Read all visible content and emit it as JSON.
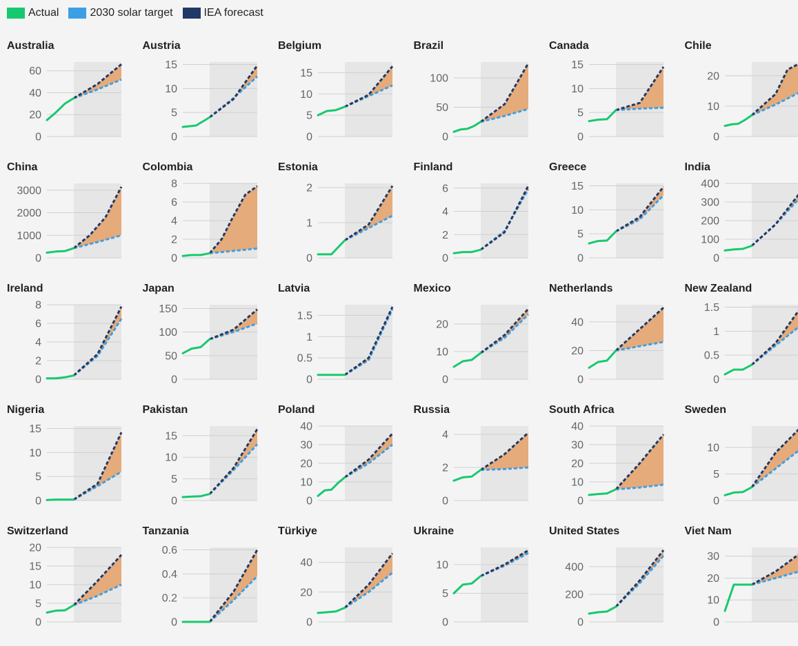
{
  "legend": {
    "items": [
      {
        "label": "Actual",
        "color": "#17c96e"
      },
      {
        "label": "2030 solar target",
        "color": "#3d9fe3"
      },
      {
        "label": "IEA forecast",
        "color": "#1f3a68"
      }
    ],
    "gap_fill_color": "#e6a46e",
    "forecast_bg_color": "#e6e6e6"
  },
  "chart_data": [
    {
      "type": "line",
      "title": "Australia",
      "yticks": [
        0,
        20,
        40,
        60
      ],
      "ylim": [
        0,
        68
      ],
      "actual": [
        15,
        22,
        30,
        35
      ],
      "target": [
        35,
        43,
        52
      ],
      "iea": [
        35,
        48,
        66
      ]
    },
    {
      "type": "line",
      "title": "Austria",
      "yticks": [
        0,
        5,
        10,
        15
      ],
      "ylim": [
        0,
        15.5
      ],
      "actual": [
        2,
        2.3,
        4
      ],
      "target": [
        4,
        8,
        12.5
      ],
      "iea": [
        4,
        7.8,
        14.8
      ]
    },
    {
      "type": "line",
      "title": "Belgium",
      "yticks": [
        0,
        5,
        10,
        15
      ],
      "ylim": [
        0,
        17.5
      ],
      "actual": [
        5,
        6,
        6.2,
        7
      ],
      "target": [
        7,
        9.5,
        12
      ],
      "iea": [
        7,
        9.8,
        16.5
      ]
    },
    {
      "type": "line",
      "title": "Brazil",
      "yticks": [
        0,
        50,
        100
      ],
      "ylim": [
        0,
        127
      ],
      "actual": [
        8,
        12,
        13,
        18,
        25
      ],
      "target": [
        25,
        35,
        47
      ],
      "iea": [
        25,
        55,
        125
      ]
    },
    {
      "type": "line",
      "title": "Canada",
      "yticks": [
        0,
        5,
        10,
        15
      ],
      "ylim": [
        0,
        15.5
      ],
      "actual": [
        3.2,
        3.5,
        3.6,
        5.5
      ],
      "target": [
        5.5,
        5.8,
        6
      ],
      "iea": [
        5.5,
        7,
        14.5
      ]
    },
    {
      "type": "line",
      "title": "Chile",
      "yticks": [
        0,
        10,
        20
      ],
      "ylim": [
        0,
        24.5
      ],
      "actual": [
        3.5,
        4,
        4.2,
        5.5,
        7
      ],
      "target": [
        7,
        10.5,
        14.5
      ],
      "iea": [
        7,
        10.5,
        14,
        22,
        24
      ]
    },
    {
      "type": "line",
      "title": "China",
      "yticks": [
        0,
        1000,
        2000,
        3000
      ],
      "ylim": [
        0,
        3300
      ],
      "actual": [
        230,
        280,
        300,
        430
      ],
      "target": [
        430,
        700,
        1000
      ],
      "iea": [
        430,
        1000,
        1800,
        3150
      ]
    },
    {
      "type": "line",
      "title": "Colombia",
      "yticks": [
        0,
        2,
        4,
        6,
        8
      ],
      "ylim": [
        0,
        8
      ],
      "actual": [
        0.2,
        0.3,
        0.3,
        0.5
      ],
      "target": [
        0.5,
        0.75,
        1
      ],
      "iea": [
        0.5,
        2,
        4.5,
        6.8,
        7.7
      ]
    },
    {
      "type": "line",
      "title": "Estonia",
      "yticks": [
        0,
        1,
        2
      ],
      "ylim": [
        0,
        2.12
      ],
      "actual": [
        0.1,
        0.1,
        0.5
      ],
      "target": [
        0.5,
        0.85,
        1.2
      ],
      "iea": [
        0.5,
        0.95,
        2.05
      ]
    },
    {
      "type": "line",
      "title": "Finland",
      "yticks": [
        0,
        2,
        4,
        6
      ],
      "ylim": [
        0,
        6.4
      ],
      "actual": [
        0.4,
        0.5,
        0.5,
        0.7
      ],
      "target": [
        0.7,
        2.3,
        5.9
      ],
      "iea": [
        0.7,
        2.2,
        6.2
      ]
    },
    {
      "type": "line",
      "title": "Greece",
      "yticks": [
        0,
        5,
        10,
        15
      ],
      "ylim": [
        0,
        15.5
      ],
      "actual": [
        3,
        3.5,
        3.6,
        5.5
      ],
      "target": [
        5.5,
        8,
        13
      ],
      "iea": [
        5.5,
        8.5,
        14.8
      ]
    },
    {
      "type": "line",
      "title": "India",
      "yticks": [
        0,
        100,
        200,
        300,
        400
      ],
      "ylim": [
        0,
        400
      ],
      "actual": [
        40,
        45,
        48,
        65
      ],
      "target": [
        65,
        180,
        320
      ],
      "iea": [
        65,
        180,
        345
      ]
    },
    {
      "type": "line",
      "title": "Ireland",
      "yticks": [
        0,
        2,
        4,
        6,
        8
      ],
      "ylim": [
        0,
        8
      ],
      "actual": [
        0.1,
        0.1,
        0.2,
        0.4
      ],
      "target": [
        0.4,
        2.5,
        6.5
      ],
      "iea": [
        0.4,
        2.7,
        7.8
      ]
    },
    {
      "type": "line",
      "title": "Japan",
      "yticks": [
        0,
        50,
        100,
        150
      ],
      "ylim": [
        0,
        158
      ],
      "actual": [
        55,
        65,
        68,
        85
      ],
      "target": [
        85,
        100,
        118
      ],
      "iea": [
        85,
        105,
        148
      ]
    },
    {
      "type": "line",
      "title": "Latvia",
      "yticks": [
        0,
        0.5,
        1,
        1.5
      ],
      "ylim": [
        0,
        1.75
      ],
      "actual": [
        0.1,
        0.1,
        0.1
      ],
      "target": [
        0.1,
        0.45,
        1.65
      ],
      "iea": [
        0.1,
        0.5,
        1.7
      ]
    },
    {
      "type": "line",
      "title": "Mexico",
      "yticks": [
        0,
        10,
        20
      ],
      "ylim": [
        0,
        27
      ],
      "actual": [
        4.5,
        6.5,
        7,
        9.5
      ],
      "target": [
        9.5,
        15,
        23.5
      ],
      "iea": [
        9.5,
        16,
        25.5
      ]
    },
    {
      "type": "line",
      "title": "Netherlands",
      "yticks": [
        0,
        20,
        40
      ],
      "ylim": [
        0,
        52
      ],
      "actual": [
        8,
        12,
        13,
        20
      ],
      "target": [
        20,
        23,
        26
      ],
      "iea": [
        20,
        35,
        50
      ]
    },
    {
      "type": "line",
      "title": "New Zealand",
      "yticks": [
        0,
        0.5,
        1,
        1.5
      ],
      "ylim": [
        0,
        1.55
      ],
      "actual": [
        0.1,
        0.2,
        0.2,
        0.3
      ],
      "target": [
        0.3,
        0.7,
        1.1
      ],
      "iea": [
        0.3,
        0.75,
        1.45
      ]
    },
    {
      "type": "line",
      "title": "Nigeria",
      "yticks": [
        0,
        5,
        10,
        15
      ],
      "ylim": [
        0,
        15.5
      ],
      "actual": [
        0.1,
        0.2,
        0.2,
        0.2
      ],
      "target": [
        0.2,
        3,
        6
      ],
      "iea": [
        0.2,
        3.5,
        14.2
      ]
    },
    {
      "type": "line",
      "title": "Pakistan",
      "yticks": [
        0,
        5,
        10,
        15
      ],
      "ylim": [
        0,
        17.2
      ],
      "actual": [
        0.8,
        0.9,
        1,
        1.5
      ],
      "target": [
        1.5,
        7,
        13
      ],
      "iea": [
        1.5,
        7.5,
        16.5
      ]
    },
    {
      "type": "line",
      "title": "Poland",
      "yticks": [
        0,
        10,
        20,
        30,
        40
      ],
      "ylim": [
        0,
        40
      ],
      "actual": [
        2.5,
        5.5,
        5.8,
        9.5,
        12.5
      ],
      "target": [
        12.5,
        20,
        30
      ],
      "iea": [
        12.5,
        22,
        36
      ]
    },
    {
      "type": "line",
      "title": "Russia",
      "yticks": [
        0,
        2,
        4
      ],
      "ylim": [
        0,
        4.5
      ],
      "actual": [
        1.2,
        1.4,
        1.45,
        1.85
      ],
      "target": [
        1.85,
        1.9,
        2
      ],
      "iea": [
        1.85,
        2.8,
        4.1
      ]
    },
    {
      "type": "line",
      "title": "South Africa",
      "yticks": [
        0,
        10,
        20,
        30,
        40
      ],
      "ylim": [
        0,
        40
      ],
      "actual": [
        3,
        3.5,
        3.8,
        6
      ],
      "target": [
        6,
        7,
        8.5
      ],
      "iea": [
        6,
        20,
        35.5
      ]
    },
    {
      "type": "line",
      "title": "Sweden",
      "yticks": [
        0,
        5,
        10
      ],
      "ylim": [
        0,
        14
      ],
      "actual": [
        1,
        1.5,
        1.6,
        2.5
      ],
      "target": [
        2.5,
        6,
        9.5
      ],
      "iea": [
        2.5,
        9,
        13.5
      ]
    },
    {
      "type": "line",
      "title": "Switzerland",
      "yticks": [
        0,
        5,
        10,
        15,
        20
      ],
      "ylim": [
        0,
        20
      ],
      "actual": [
        2.5,
        3,
        3.1,
        4.5
      ],
      "target": [
        4.5,
        7,
        10
      ],
      "iea": [
        4.5,
        11,
        18
      ]
    },
    {
      "type": "line",
      "title": "Tanzania",
      "yticks": [
        0,
        0.2,
        0.4,
        0.6
      ],
      "ylim": [
        0,
        0.62
      ],
      "actual": [
        0,
        0,
        0,
        0
      ],
      "target": [
        0,
        0.18,
        0.38
      ],
      "iea": [
        0,
        0.25,
        0.6
      ]
    },
    {
      "type": "line",
      "title": "Türkiye",
      "yticks": [
        0,
        20,
        40
      ],
      "ylim": [
        0,
        50
      ],
      "actual": [
        6,
        6.5,
        7,
        9.5
      ],
      "target": [
        9.5,
        20,
        33
      ],
      "iea": [
        9.5,
        25,
        46
      ]
    },
    {
      "type": "line",
      "title": "Ukraine",
      "yticks": [
        0,
        5,
        10
      ],
      "ylim": [
        0,
        13
      ],
      "actual": [
        5,
        6.5,
        6.7,
        8
      ],
      "target": [
        8,
        9.8,
        12
      ],
      "iea": [
        8,
        10,
        12.5
      ]
    },
    {
      "type": "line",
      "title": "United States",
      "yticks": [
        0,
        200,
        400
      ],
      "ylim": [
        0,
        540
      ],
      "actual": [
        60,
        70,
        75,
        110
      ],
      "target": [
        110,
        280,
        480
      ],
      "iea": [
        110,
        300,
        520
      ]
    },
    {
      "type": "line",
      "title": "Viet Nam",
      "yticks": [
        0,
        10,
        20,
        30
      ],
      "ylim": [
        0,
        34
      ],
      "actual": [
        5,
        17,
        17,
        17
      ],
      "target": [
        17,
        20,
        23
      ],
      "iea": [
        17,
        23,
        31
      ]
    }
  ]
}
